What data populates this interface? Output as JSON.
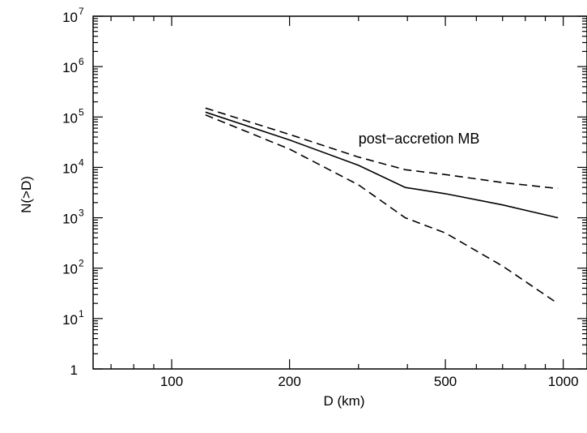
{
  "chart_data": {
    "type": "line",
    "xlabel": "D (km)",
    "ylabel": "N(>D)",
    "xscale": "log",
    "yscale": "log",
    "xlim": [
      63,
      1150
    ],
    "ylim": [
      1,
      10000000
    ],
    "grid": false,
    "x_ticks": [
      {
        "value": 100,
        "label": "100"
      },
      {
        "value": 200,
        "label": "200"
      },
      {
        "value": 500,
        "label": "500"
      },
      {
        "value": 1000,
        "label": "1000"
      }
    ],
    "y_ticks": [
      {
        "value": 1,
        "base": "1",
        "exp": ""
      },
      {
        "value": 10,
        "base": "10",
        "exp": "1"
      },
      {
        "value": 100,
        "base": "10",
        "exp": "2"
      },
      {
        "value": 1000,
        "base": "10",
        "exp": "3"
      },
      {
        "value": 10000,
        "base": "10",
        "exp": "4"
      },
      {
        "value": 100000,
        "base": "10",
        "exp": "5"
      },
      {
        "value": 1000000,
        "base": "10",
        "exp": "6"
      },
      {
        "value": 10000000,
        "base": "10",
        "exp": "7"
      }
    ],
    "annotations": [
      {
        "text": "post−accretion MB",
        "x": 300,
        "y": 30000
      }
    ],
    "series": [
      {
        "style": "solid",
        "color": "#000000",
        "x": [
          122,
          200,
          300,
          395,
          500,
          700,
          970
        ],
        "y": [
          125000,
          35000,
          11000,
          4000,
          3000,
          1800,
          1000
        ]
      },
      {
        "style": "dashed",
        "color": "#000000",
        "x": [
          122,
          200,
          300,
          395,
          500,
          700,
          970
        ],
        "y": [
          150000,
          45000,
          16000,
          9000,
          7200,
          5000,
          3800
        ]
      },
      {
        "style": "dashed",
        "color": "#000000",
        "x": [
          122,
          200,
          300,
          395,
          500,
          700,
          950
        ],
        "y": [
          110000,
          23000,
          4500,
          1000,
          500,
          110,
          22
        ]
      }
    ]
  }
}
